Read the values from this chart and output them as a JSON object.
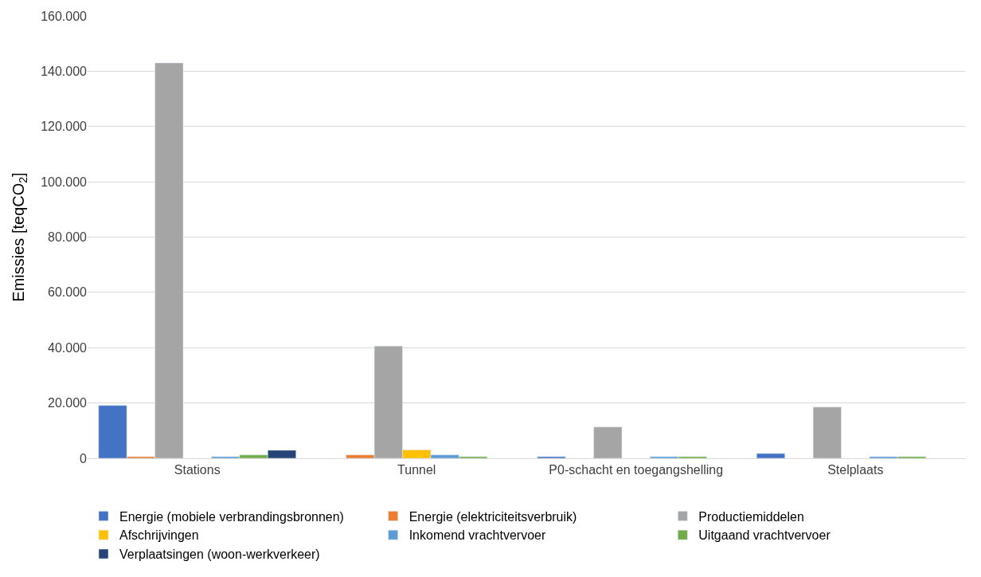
{
  "chart_data": {
    "type": "bar",
    "ylabel": "Emissies [teqCO$_{2}$]",
    "categories": [
      "Stations",
      "Tunnel",
      "P0-schacht en toegangshelling",
      "Stelplaats"
    ],
    "series": [
      {
        "name": "Energie (mobiele verbrandingsbronnen)",
        "color": "#4472c4",
        "values": [
          19100,
          null,
          600,
          1700
        ]
      },
      {
        "name": "Energie (elektriciteitsverbruik)",
        "color": "#ed7d31",
        "values": [
          600,
          1200,
          null,
          null
        ]
      },
      {
        "name": "Productiemiddelen",
        "color": "#a5a5a5",
        "values": [
          143000,
          40600,
          11300,
          18500
        ]
      },
      {
        "name": "Afschrijvingen",
        "color": "#ffc000",
        "values": [
          null,
          3000,
          null,
          null
        ]
      },
      {
        "name": "Inkomend vrachtvervoer",
        "color": "#5b9bd5",
        "values": [
          600,
          1200,
          600,
          600
        ]
      },
      {
        "name": "Uitgaand vrachtvervoer",
        "color": "#70ad47",
        "values": [
          1200,
          600,
          600,
          600
        ]
      },
      {
        "name": "Verplaatsingen (woon-werkverkeer)",
        "color": "#264478",
        "values": [
          2900,
          null,
          null,
          null
        ]
      }
    ],
    "ylim": [
      0,
      160000
    ],
    "yticks": [
      {
        "value": 0,
        "label": "0"
      },
      {
        "value": 20000,
        "label": "20.000"
      },
      {
        "value": 40000,
        "label": "40.000"
      },
      {
        "value": 60000,
        "label": "60.000"
      },
      {
        "value": 80000,
        "label": "80.000"
      },
      {
        "value": 100000,
        "label": "100.000"
      },
      {
        "value": 120000,
        "label": "120.000"
      },
      {
        "value": 140000,
        "label": "140.000"
      },
      {
        "value": 160000,
        "label": "160.000"
      }
    ],
    "grid": "y",
    "legend": "bottom"
  }
}
